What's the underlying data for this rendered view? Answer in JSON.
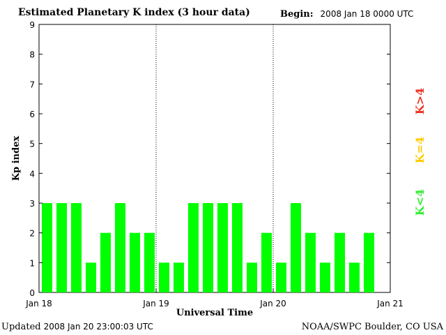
{
  "header": {
    "title": "Estimated Planetary K index (3 hour data)",
    "begin_label": "Begin:",
    "begin_value": "2008 Jan 18 0000 UTC"
  },
  "footer": {
    "updated_label": "Updated",
    "updated_value": "2008 Jan 20 23:00:03 UTC",
    "source": "NOAA/SWPC Boulder, CO USA"
  },
  "chart_data": {
    "type": "bar",
    "title": "Estimated Planetary K index (3 hour data)",
    "xlabel": "Universal Time",
    "ylabel": "Kp index",
    "ylim": [
      0,
      9
    ],
    "yticks": [
      0,
      1,
      2,
      3,
      4,
      5,
      6,
      7,
      8,
      9
    ],
    "xticks": [
      "Jan 18",
      "Jan 19",
      "Jan 20",
      "Jan 21"
    ],
    "bars_per_day": 8,
    "values": [
      3,
      3,
      3,
      1,
      2,
      3,
      2,
      2,
      1,
      1,
      3,
      3,
      3,
      3,
      1,
      2,
      1,
      3,
      2,
      1,
      2,
      1,
      2
    ],
    "bar_color": "#00ff00",
    "legend": [
      {
        "label": "K<4",
        "color": "#33ee33"
      },
      {
        "label": "K=4",
        "color": "#ffcc00"
      },
      {
        "label": "K>4",
        "color": "#ee3322"
      }
    ],
    "legend_placement": "right, vertical",
    "day_separators": "dotted vertical lines",
    "grid": false
  }
}
